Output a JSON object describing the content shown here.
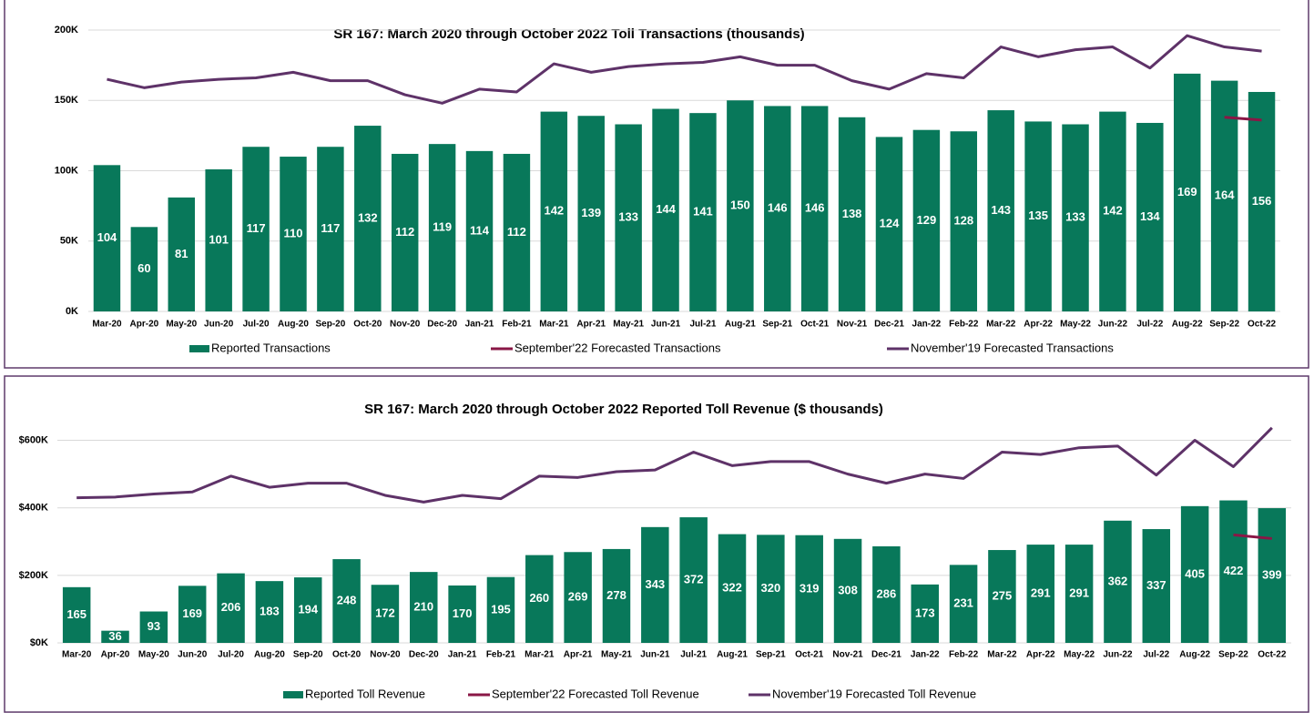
{
  "chart_data": [
    {
      "type": "bar",
      "title": "SR 167: March 2020 through October 2022 Toll Transactions (thousands)",
      "categories": [
        "Mar-20",
        "Apr-20",
        "May-20",
        "Jun-20",
        "Jul-20",
        "Aug-20",
        "Sep-20",
        "Oct-20",
        "Nov-20",
        "Dec-20",
        "Jan-21",
        "Feb-21",
        "Mar-21",
        "Apr-21",
        "May-21",
        "Jun-21",
        "Jul-21",
        "Aug-21",
        "Sep-21",
        "Oct-21",
        "Nov-21",
        "Dec-21",
        "Jan-22",
        "Feb-22",
        "Mar-22",
        "Apr-22",
        "May-22",
        "Jun-22",
        "Jul-22",
        "Aug-22",
        "Sep-22",
        "Oct-22"
      ],
      "series": [
        {
          "name": "Reported Transactions",
          "type": "bar",
          "color": "#08785a",
          "values": [
            104,
            60,
            81,
            101,
            117,
            110,
            117,
            132,
            112,
            119,
            114,
            112,
            142,
            139,
            133,
            144,
            141,
            150,
            146,
            146,
            138,
            124,
            129,
            128,
            143,
            135,
            133,
            142,
            134,
            169,
            164,
            156
          ]
        },
        {
          "name": "September'22 Forecasted Transactions",
          "type": "line",
          "color": "#8a1746",
          "values": [
            null,
            null,
            null,
            null,
            null,
            null,
            null,
            null,
            null,
            null,
            null,
            null,
            null,
            null,
            null,
            null,
            null,
            null,
            null,
            null,
            null,
            null,
            null,
            null,
            null,
            null,
            null,
            null,
            null,
            null,
            138,
            136
          ]
        },
        {
          "name": "November'19 Forecasted Transactions",
          "type": "line",
          "color": "#5e3268",
          "values": [
            165,
            159,
            163,
            165,
            166,
            170,
            164,
            164,
            154,
            148,
            158,
            156,
            176,
            170,
            174,
            176,
            177,
            181,
            175,
            175,
            164,
            158,
            169,
            166,
            188,
            181,
            186,
            188,
            173,
            196,
            188,
            185
          ]
        }
      ],
      "ylim": [
        0,
        200
      ],
      "yticks": [
        {
          "value": 0,
          "label": "0K"
        },
        {
          "value": 50,
          "label": "50K"
        },
        {
          "value": 100,
          "label": "100K"
        },
        {
          "value": 150,
          "label": "150K"
        },
        {
          "value": 200,
          "label": "200K"
        }
      ],
      "grid": true,
      "legend": "bottom"
    },
    {
      "type": "bar",
      "title": "SR 167: March 2020 through October 2022 Reported Toll Revenue ($ thousands)",
      "categories": [
        "Mar-20",
        "Apr-20",
        "May-20",
        "Jun-20",
        "Jul-20",
        "Aug-20",
        "Sep-20",
        "Oct-20",
        "Nov-20",
        "Dec-20",
        "Jan-21",
        "Feb-21",
        "Mar-21",
        "Apr-21",
        "May-21",
        "Jun-21",
        "Jul-21",
        "Aug-21",
        "Sep-21",
        "Oct-21",
        "Nov-21",
        "Dec-21",
        "Jan-22",
        "Feb-22",
        "Mar-22",
        "Apr-22",
        "May-22",
        "Jun-22",
        "Jul-22",
        "Aug-22",
        "Sep-22",
        "Oct-22"
      ],
      "series": [
        {
          "name": "Reported Toll Revenue",
          "type": "bar",
          "color": "#08785a",
          "values": [
            165,
            36,
            93,
            169,
            206,
            183,
            194,
            248,
            172,
            210,
            170,
            195,
            260,
            269,
            278,
            343,
            372,
            322,
            320,
            319,
            308,
            286,
            173,
            231,
            275,
            291,
            291,
            362,
            337,
            405,
            422,
            399
          ]
        },
        {
          "name": "September'22 Forecasted Toll Revenue",
          "type": "line",
          "color": "#8a1746",
          "values": [
            null,
            null,
            null,
            null,
            null,
            null,
            null,
            null,
            null,
            null,
            null,
            null,
            null,
            null,
            null,
            null,
            null,
            null,
            null,
            null,
            null,
            null,
            null,
            null,
            null,
            null,
            null,
            null,
            null,
            null,
            320,
            309
          ]
        },
        {
          "name": "November'19 Forecasted Toll Revenue",
          "type": "line",
          "color": "#5e3268",
          "values": [
            430,
            432,
            441,
            447,
            494,
            461,
            473,
            473,
            437,
            417,
            437,
            427,
            494,
            490,
            507,
            512,
            565,
            525,
            537,
            537,
            500,
            473,
            500,
            487,
            565,
            558,
            578,
            583,
            497,
            600,
            522,
            637
          ]
        }
      ],
      "ylim": [
        0,
        650
      ],
      "yticks": [
        {
          "value": 0,
          "label": "$0K"
        },
        {
          "value": 200,
          "label": "$200K"
        },
        {
          "value": 400,
          "label": "$400K"
        },
        {
          "value": 600,
          "label": "$600K"
        }
      ],
      "grid": true,
      "legend": "bottom"
    }
  ]
}
